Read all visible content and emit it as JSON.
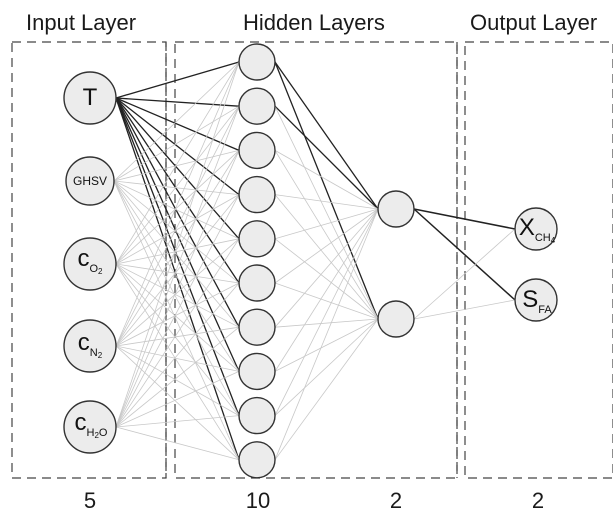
{
  "layers": [
    {
      "title": "Input Layer",
      "count": "5"
    },
    {
      "title": "Hidden Layers",
      "count": "10"
    },
    {
      "title": "",
      "count": "2"
    },
    {
      "title": "Output Layer",
      "count": "2"
    }
  ],
  "inputs": [
    {
      "main": "T",
      "sub": ""
    },
    {
      "main": "GHSV",
      "sub": ""
    },
    {
      "main": "c",
      "sub": "O",
      "subsub": "2"
    },
    {
      "main": "c",
      "sub": "N",
      "subsub": "2"
    },
    {
      "main": "c",
      "sub": "H",
      "subsub": "2",
      "tail": "O"
    }
  ],
  "outputs": [
    {
      "main": "X",
      "sub": "CH",
      "subsub": "4"
    },
    {
      "main": "S",
      "sub": "FA"
    }
  ],
  "colors": {
    "node_fill": "#ececec",
    "node_stroke": "#333333",
    "strong_edge": "#222222",
    "weak_edge": "#c8c8c8"
  }
}
